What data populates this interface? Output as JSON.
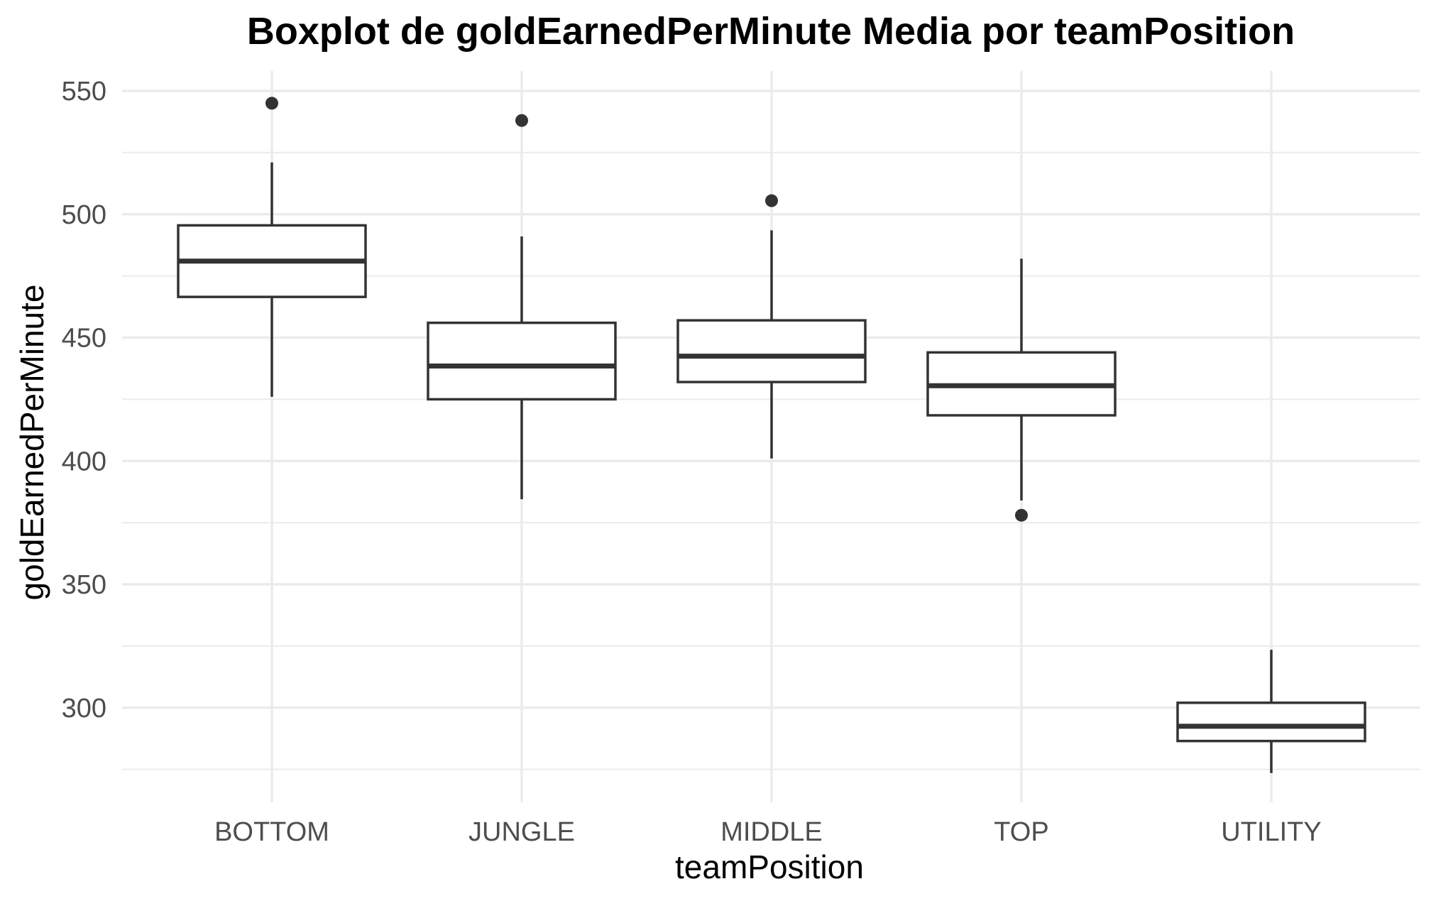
{
  "chart_data": {
    "type": "boxplot",
    "title": "Boxplot de goldEarnedPerMinute Media por teamPosition",
    "xlabel": "teamPosition",
    "ylabel": "goldEarnedPerMinute",
    "ylim": [
      261,
      558
    ],
    "y_ticks": [
      300,
      350,
      400,
      450,
      500,
      550
    ],
    "grid": true,
    "categories": [
      "BOTTOM",
      "JUNGLE",
      "MIDDLE",
      "TOP",
      "UTILITY"
    ],
    "boxes": [
      {
        "category": "BOTTOM",
        "whisker_low": 426,
        "q1": 466.5,
        "median": 481,
        "q3": 495.5,
        "whisker_high": 521,
        "outliers": [
          545
        ]
      },
      {
        "category": "JUNGLE",
        "whisker_low": 384.5,
        "q1": 425,
        "median": 438.5,
        "q3": 456,
        "whisker_high": 491,
        "outliers": [
          538
        ]
      },
      {
        "category": "MIDDLE",
        "whisker_low": 401,
        "q1": 432,
        "median": 442.5,
        "q3": 457,
        "whisker_high": 493.5,
        "outliers": [
          505.5
        ]
      },
      {
        "category": "TOP",
        "whisker_low": 384,
        "q1": 418.5,
        "median": 430.5,
        "q3": 444,
        "whisker_high": 482,
        "outliers": [
          378
        ]
      },
      {
        "category": "UTILITY",
        "whisker_low": 273.5,
        "q1": 286.5,
        "median": 292.5,
        "q3": 302,
        "whisker_high": 323.5,
        "outliers": []
      }
    ]
  }
}
